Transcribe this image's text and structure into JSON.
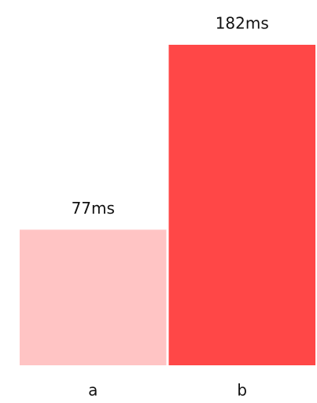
{
  "chart_data": {
    "type": "bar",
    "categories": [
      "a",
      "b"
    ],
    "values": [
      77,
      182
    ],
    "value_labels": [
      "77ms",
      "182ms"
    ],
    "colors": [
      "#ffc4c4",
      "#ff4747"
    ]
  }
}
